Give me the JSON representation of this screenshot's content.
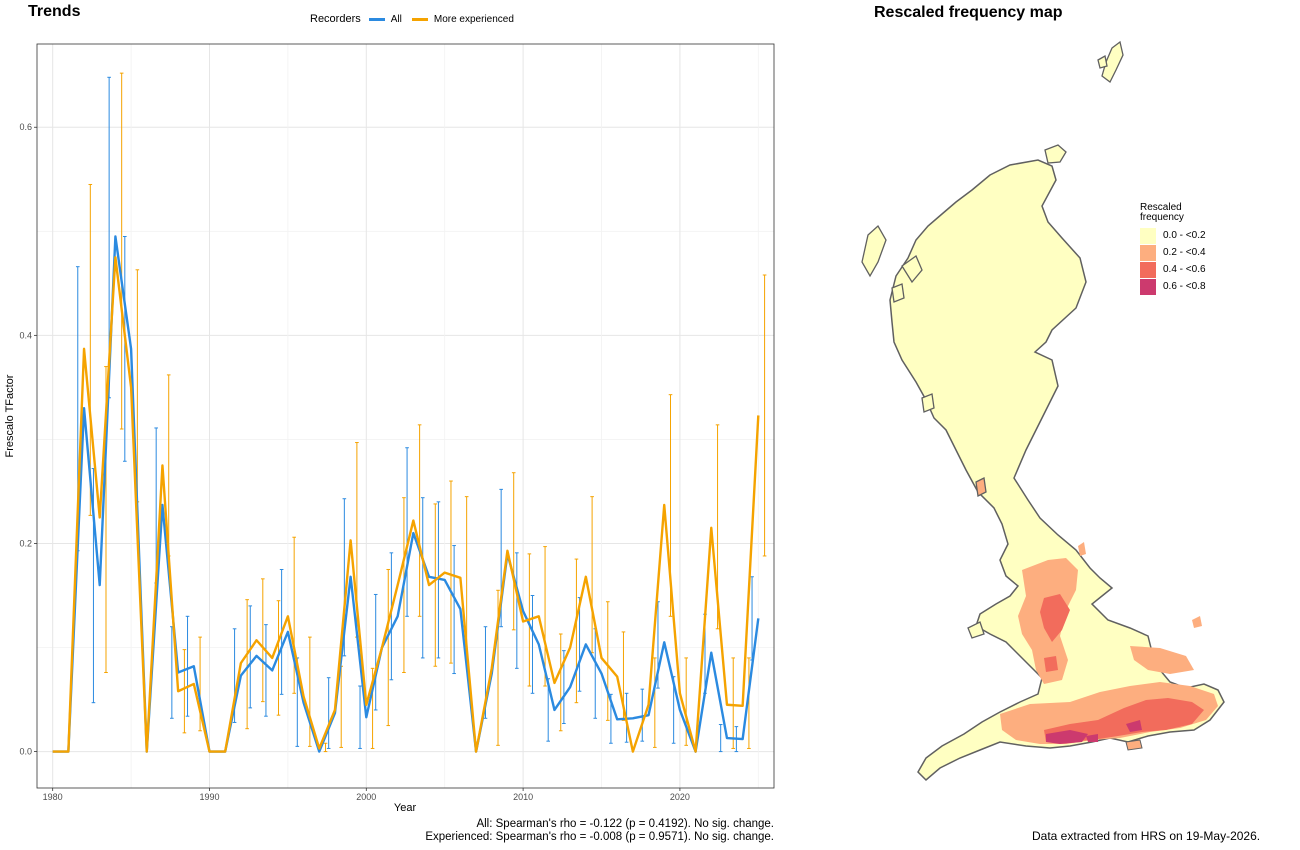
{
  "trends_title": "Trends",
  "map_title": "Rescaled frequency map",
  "legend": {
    "title": "Recorders",
    "items": [
      {
        "label": "All",
        "color": "#2b8ae0"
      },
      {
        "label": "More experienced",
        "color": "#f5a300"
      }
    ]
  },
  "stats": {
    "line1": "All: Spearman's rho = -0.122 (p = 0.4192). No sig. change.",
    "line2": "Experienced: Spearman's rho = -0.008 (p = 0.9571). No sig. change."
  },
  "map_legend": {
    "title_line1": "Rescaled",
    "title_line2": "frequency",
    "items": [
      {
        "label": "0.0 - <0.2",
        "color": "#ffffc2"
      },
      {
        "label": "0.2 - <0.4",
        "color": "#fdae7f"
      },
      {
        "label": "0.4 - <0.6",
        "color": "#f26c5c"
      },
      {
        "label": "0.6 - <0.8",
        "color": "#cc3a6e"
      }
    ]
  },
  "footer_note": "Data extracted from HRS on 19-May-2026.",
  "chart_data": {
    "type": "line",
    "title": "Trends",
    "xlabel": "Year",
    "ylabel": "Frescalo TFactor",
    "xlim": [
      1979,
      2026
    ],
    "ylim": [
      -0.035,
      0.68
    ],
    "xticks": [
      1980,
      1990,
      2000,
      2010,
      2020
    ],
    "yticks": [
      0.0,
      0.2,
      0.4,
      0.6
    ],
    "ytick_labels": [
      "0.0",
      "0.2",
      "0.4",
      "0.6"
    ],
    "grid": true,
    "legend_position": "top",
    "x": [
      1980,
      1981,
      1982,
      1983,
      1984,
      1985,
      1986,
      1987,
      1988,
      1989,
      1990,
      1991,
      1992,
      1993,
      1994,
      1995,
      1996,
      1997,
      1998,
      1999,
      2000,
      2001,
      2002,
      2003,
      2004,
      2005,
      2006,
      2007,
      2008,
      2009,
      2010,
      2011,
      2012,
      2013,
      2014,
      2015,
      2016,
      2017,
      2018,
      2019,
      2020,
      2021,
      2022,
      2023,
      2024,
      2025
    ],
    "series": [
      {
        "name": "All",
        "color": "#2b8ae0",
        "values": [
          0,
          0,
          0.33,
          0.16,
          0.495,
          0.387,
          0,
          0.237,
          0.076,
          0.082,
          0,
          0,
          0.073,
          0.092,
          0.078,
          0.115,
          0.047,
          0,
          0.037,
          0.168,
          0.033,
          0.1,
          0.13,
          0.21,
          0.168,
          0.165,
          0.137,
          0,
          0.075,
          0.19,
          0.135,
          0.103,
          0.04,
          0.062,
          0.103,
          0.075,
          0.031,
          0.032,
          0.035,
          0.105,
          0.04,
          0,
          0.095,
          0.013,
          0.012,
          0.128
        ],
        "lower": [
          0,
          0,
          0.193,
          0.047,
          0.34,
          0.279,
          0,
          0.162,
          0.032,
          0.034,
          0,
          0,
          0.028,
          0.042,
          0.034,
          0.055,
          0.005,
          0,
          0.003,
          0.092,
          0.003,
          0.04,
          0.069,
          0.13,
          0.09,
          0.09,
          0.075,
          0,
          0.032,
          0.12,
          0.08,
          0.056,
          0.01,
          0.027,
          0.058,
          0.032,
          0.008,
          0.009,
          0.01,
          0.061,
          0.008,
          0,
          0.056,
          0,
          0,
          0.088
        ],
        "upper": [
          0,
          0,
          0.466,
          0.272,
          0.648,
          0.495,
          0,
          0.311,
          0.12,
          0.13,
          0,
          0,
          0.118,
          0.14,
          0.122,
          0.175,
          0.09,
          0,
          0.071,
          0.243,
          0.063,
          0.151,
          0.191,
          0.292,
          0.244,
          0.24,
          0.198,
          0,
          0.12,
          0.252,
          0.191,
          0.15,
          0.07,
          0.097,
          0.148,
          0.118,
          0.055,
          0.056,
          0.06,
          0.144,
          0.072,
          0,
          0.132,
          0.026,
          0.024,
          0.168
        ]
      },
      {
        "name": "More experienced",
        "color": "#f5a300",
        "values": [
          0,
          0,
          0.387,
          0.225,
          0.475,
          0.35,
          0,
          0.275,
          0.058,
          0.065,
          0,
          0,
          0.085,
          0.107,
          0.09,
          0.13,
          0.053,
          0.003,
          0.04,
          0.203,
          0.045,
          0.1,
          0.16,
          0.222,
          0.16,
          0.172,
          0.167,
          0,
          0.08,
          0.193,
          0.125,
          0.13,
          0.066,
          0.1,
          0.168,
          0.09,
          0.072,
          0,
          0.045,
          0.237,
          0.056,
          0,
          0.215,
          0.045,
          0.044,
          0.323
        ],
        "lower": [
          0,
          0,
          0.227,
          0.076,
          0.31,
          0.24,
          0,
          0.188,
          0.018,
          0.02,
          0,
          0,
          0.022,
          0.048,
          0.035,
          0.056,
          0.005,
          0,
          0.004,
          0.11,
          0.003,
          0.025,
          0.076,
          0.13,
          0.082,
          0.085,
          0.09,
          0,
          0.006,
          0.117,
          0.063,
          0.063,
          0.02,
          0.047,
          0.095,
          0.03,
          0.03,
          0,
          0.004,
          0.13,
          0.006,
          0,
          0.118,
          0.003,
          0.003,
          0.188
        ],
        "upper": [
          0,
          0,
          0.545,
          0.37,
          0.652,
          0.463,
          0,
          0.362,
          0.098,
          0.11,
          0,
          0,
          0.146,
          0.166,
          0.145,
          0.206,
          0.11,
          0.008,
          0.082,
          0.297,
          0.08,
          0.175,
          0.244,
          0.314,
          0.238,
          0.26,
          0.245,
          0,
          0.155,
          0.268,
          0.19,
          0.197,
          0.113,
          0.185,
          0.245,
          0.144,
          0.115,
          0,
          0.09,
          0.343,
          0.09,
          0,
          0.314,
          0.09,
          0.09,
          0.458
        ]
      }
    ]
  }
}
